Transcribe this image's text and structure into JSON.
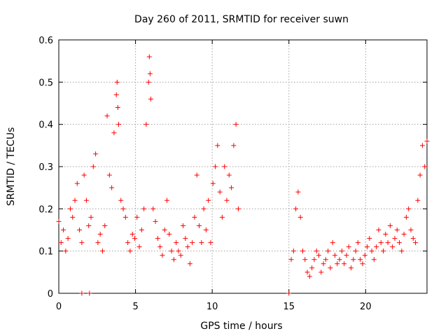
{
  "chart_data": {
    "type": "scatter",
    "title": "Day 260 of 2011, SRMTID for receiver suwn",
    "xlabel": "GPS time / hours",
    "ylabel": "SRMTID / TECUs",
    "xlim": [
      0,
      24
    ],
    "ylim": [
      0,
      0.6
    ],
    "xticks": [
      0,
      5,
      10,
      15,
      20
    ],
    "yticks": [
      0,
      0.1,
      0.2,
      0.3,
      0.4,
      0.5,
      0.6
    ],
    "grid": true,
    "marker": "+",
    "color": "#ff0000",
    "series": [
      {
        "name": "suwn",
        "x": [
          0.0,
          0.15,
          0.3,
          0.45,
          0.6,
          0.75,
          0.9,
          1.05,
          1.2,
          1.35,
          1.5,
          1.65,
          1.8,
          1.95,
          2.1,
          2.25,
          2.4,
          2.55,
          2.7,
          2.85,
          3.0,
          3.15,
          3.3,
          3.45,
          3.6,
          3.75,
          3.8,
          3.85,
          3.9,
          4.05,
          4.2,
          4.35,
          4.5,
          4.65,
          4.8,
          4.95,
          5.1,
          5.25,
          5.4,
          5.55,
          5.7,
          5.85,
          5.9,
          5.95,
          6.0,
          6.15,
          6.3,
          6.45,
          6.6,
          6.75,
          6.9,
          7.05,
          7.2,
          7.35,
          7.5,
          7.65,
          7.8,
          7.95,
          8.1,
          8.25,
          8.4,
          8.55,
          8.7,
          8.85,
          9.0,
          9.15,
          9.3,
          9.45,
          9.6,
          9.75,
          9.9,
          10.05,
          10.2,
          10.35,
          10.5,
          10.65,
          10.8,
          10.95,
          11.1,
          11.25,
          11.4,
          11.55,
          11.7,
          15.0,
          15.15,
          15.3,
          15.45,
          15.6,
          15.75,
          15.9,
          16.05,
          16.2,
          16.35,
          16.5,
          16.65,
          16.8,
          16.95,
          17.1,
          17.25,
          17.4,
          17.55,
          17.7,
          17.85,
          18.0,
          18.15,
          18.3,
          18.45,
          18.6,
          18.75,
          18.9,
          19.05,
          19.2,
          19.35,
          19.5,
          19.65,
          19.8,
          19.95,
          20.1,
          20.25,
          20.4,
          20.55,
          20.7,
          20.85,
          21.0,
          21.15,
          21.3,
          21.45,
          21.6,
          21.75,
          21.9,
          22.05,
          22.2,
          22.35,
          22.5,
          22.65,
          22.8,
          22.95,
          23.1,
          23.25,
          23.4,
          23.55,
          23.7,
          23.85,
          24.0,
          1.5,
          2.0
        ],
        "y": [
          0.17,
          0.12,
          0.15,
          0.1,
          0.13,
          0.2,
          0.18,
          0.22,
          0.26,
          0.15,
          0.12,
          0.28,
          0.22,
          0.16,
          0.18,
          0.3,
          0.33,
          0.12,
          0.14,
          0.1,
          0.16,
          0.42,
          0.28,
          0.25,
          0.38,
          0.47,
          0.5,
          0.44,
          0.4,
          0.22,
          0.2,
          0.18,
          0.12,
          0.1,
          0.14,
          0.13,
          0.18,
          0.11,
          0.15,
          0.2,
          0.4,
          0.5,
          0.56,
          0.52,
          0.46,
          0.2,
          0.17,
          0.13,
          0.11,
          0.09,
          0.15,
          0.22,
          0.14,
          0.1,
          0.08,
          0.12,
          0.1,
          0.09,
          0.16,
          0.13,
          0.11,
          0.07,
          0.12,
          0.18,
          0.28,
          0.16,
          0.12,
          0.2,
          0.15,
          0.22,
          0.12,
          0.26,
          0.3,
          0.35,
          0.24,
          0.18,
          0.3,
          0.22,
          0.28,
          0.25,
          0.35,
          0.4,
          0.2,
          0.0,
          0.08,
          0.1,
          0.2,
          0.24,
          0.18,
          0.1,
          0.08,
          0.05,
          0.04,
          0.06,
          0.08,
          0.1,
          0.09,
          0.05,
          0.07,
          0.08,
          0.1,
          0.06,
          0.12,
          0.09,
          0.07,
          0.08,
          0.1,
          0.07,
          0.09,
          0.11,
          0.06,
          0.08,
          0.1,
          0.12,
          0.08,
          0.07,
          0.09,
          0.11,
          0.13,
          0.1,
          0.08,
          0.11,
          0.15,
          0.12,
          0.1,
          0.14,
          0.12,
          0.16,
          0.11,
          0.13,
          0.15,
          0.12,
          0.1,
          0.14,
          0.18,
          0.2,
          0.15,
          0.13,
          0.12,
          0.22,
          0.28,
          0.35,
          0.3,
          0.36,
          0.0,
          0.0
        ]
      }
    ]
  }
}
